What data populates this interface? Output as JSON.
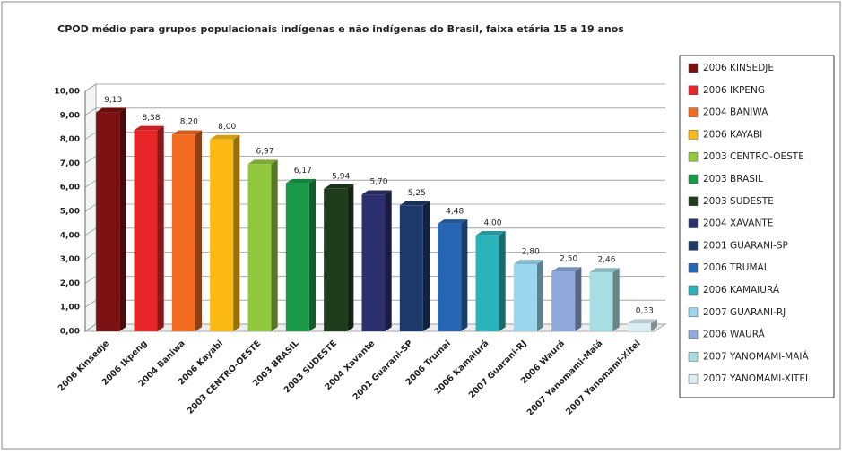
{
  "chart_data": {
    "type": "bar3d",
    "title": "CPOD médio para grupos populacionais indígenas e não indígenas do Brasil, faixa etária 15 a 19 anos",
    "categories": [
      "2006 Kinsedje",
      "2006 Ikpeng",
      "2004 Baniwa",
      "2006 Kayabi",
      "2003 CENTRO-OESTE",
      "2003 BRASIL",
      "2003 SUDESTE",
      "2004 Xavante",
      "2001 Guarani-SP",
      "2006 Trumai",
      "2006 Kamaiurá",
      "2007 Guarani-RJ",
      "2006 Waurá",
      "2007 Yanomami-Maiá",
      "2007 Yanomami-Xitei"
    ],
    "values": [
      9.13,
      8.38,
      8.2,
      8.0,
      6.97,
      6.17,
      5.94,
      5.7,
      5.25,
      4.48,
      4.0,
      2.8,
      2.5,
      2.46,
      0.33
    ],
    "value_labels": [
      "9,13",
      "8,38",
      "8,20",
      "8,00",
      "6,97",
      "6,17",
      "5,94",
      "5,70",
      "5,25",
      "4,48",
      "4,00",
      "2,80",
      "2,50",
      "2,46",
      "0,33"
    ],
    "colors": [
      "#7b1113",
      "#e8262a",
      "#f26b21",
      "#fdb913",
      "#92c83e",
      "#1a9a48",
      "#1f3d1d",
      "#2b2f6e",
      "#1b3a6b",
      "#2766b5",
      "#2ab3b8",
      "#9bd8ef",
      "#8faadc",
      "#a8dde3",
      "#dcecf3"
    ],
    "legend": [
      "2006 KINSEDJE",
      "2006 IKPENG",
      "2004 BANIWA",
      "2006 KAYABI",
      "2003 CENTRO-OESTE",
      "2003 BRASIL",
      "2003 SUDESTE",
      "2004 XAVANTE",
      "2001 GUARANI-SP",
      "2006 TRUMAI",
      "2006 KAMAIURÁ",
      "2007 GUARANI-RJ",
      "2006 WAURÁ",
      "2007 YANOMAMI-MAIÁ",
      "2007 YANOMAMI-XITEI"
    ],
    "ylim": [
      0,
      10
    ],
    "yticks": [
      {
        "value": 0,
        "label": "0,00"
      },
      {
        "value": 1,
        "label": "1,00"
      },
      {
        "value": 2,
        "label": "2,00"
      },
      {
        "value": 3,
        "label": "3,00"
      },
      {
        "value": 4,
        "label": "4,00"
      },
      {
        "value": 5,
        "label": "5,00"
      },
      {
        "value": 6,
        "label": "6,00"
      },
      {
        "value": 7,
        "label": "7,00"
      },
      {
        "value": 8,
        "label": "8,00"
      },
      {
        "value": 9,
        "label": "9,00"
      },
      {
        "value": 10,
        "label": "10,00"
      }
    ],
    "grid": true
  }
}
